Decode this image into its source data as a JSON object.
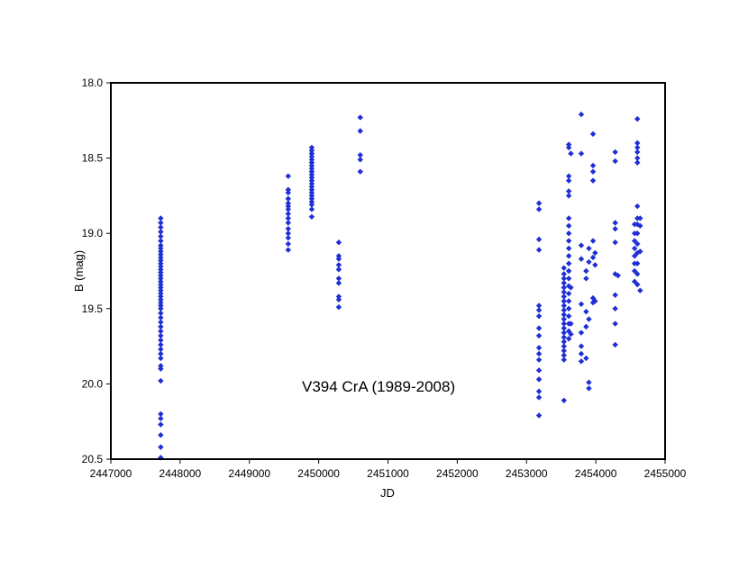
{
  "chart_data": {
    "type": "scatter",
    "title": "",
    "annotation": "V394 CrA (1989-2008)",
    "xlabel": "JD",
    "ylabel": "B (mag)",
    "xlim": [
      2447000,
      2455000
    ],
    "ylim": [
      18.0,
      20.5
    ],
    "y_inverted": true,
    "x_ticks": [
      "2447000",
      "2448000",
      "2449000",
      "2450000",
      "2451000",
      "2452000",
      "2453000",
      "2454000",
      "2455000"
    ],
    "y_ticks": [
      "18.0",
      "18.5",
      "19.0",
      "19.5",
      "20.0",
      "20.5"
    ],
    "grid": false,
    "legend": "none",
    "marker": "diamond",
    "color": "#1f2fd6",
    "series": [
      {
        "values": [
          [
            2447720,
            18.9
          ],
          [
            2447720,
            18.93
          ],
          [
            2447720,
            18.96
          ],
          [
            2447720,
            18.99
          ],
          [
            2447720,
            19.02
          ],
          [
            2447720,
            19.05
          ],
          [
            2447720,
            19.08
          ],
          [
            2447720,
            19.1
          ],
          [
            2447720,
            19.12
          ],
          [
            2447720,
            19.14
          ],
          [
            2447720,
            19.16
          ],
          [
            2447720,
            19.18
          ],
          [
            2447720,
            19.2
          ],
          [
            2447720,
            19.22
          ],
          [
            2447720,
            19.24
          ],
          [
            2447720,
            19.26
          ],
          [
            2447720,
            19.28
          ],
          [
            2447720,
            19.3
          ],
          [
            2447720,
            19.32
          ],
          [
            2447720,
            19.34
          ],
          [
            2447720,
            19.36
          ],
          [
            2447720,
            19.38
          ],
          [
            2447720,
            19.4
          ],
          [
            2447720,
            19.42
          ],
          [
            2447720,
            19.44
          ],
          [
            2447720,
            19.46
          ],
          [
            2447720,
            19.48
          ],
          [
            2447720,
            19.5
          ],
          [
            2447720,
            19.53
          ],
          [
            2447720,
            19.56
          ],
          [
            2447720,
            19.59
          ],
          [
            2447720,
            19.62
          ],
          [
            2447720,
            19.65
          ],
          [
            2447720,
            19.68
          ],
          [
            2447720,
            19.71
          ],
          [
            2447720,
            19.74
          ],
          [
            2447720,
            19.77
          ],
          [
            2447720,
            19.8
          ],
          [
            2447720,
            19.83
          ],
          [
            2447720,
            19.88
          ],
          [
            2447720,
            19.9
          ],
          [
            2447720,
            19.98
          ],
          [
            2447720,
            20.2
          ],
          [
            2447720,
            20.23
          ],
          [
            2447720,
            20.27
          ],
          [
            2447720,
            20.34
          ],
          [
            2447720,
            20.42
          ],
          [
            2447720,
            20.49
          ],
          [
            2449560,
            18.62
          ],
          [
            2449560,
            18.71
          ],
          [
            2449560,
            18.73
          ],
          [
            2449560,
            18.77
          ],
          [
            2449560,
            18.8
          ],
          [
            2449560,
            18.82
          ],
          [
            2449560,
            18.84
          ],
          [
            2449560,
            18.87
          ],
          [
            2449560,
            18.9
          ],
          [
            2449560,
            18.93
          ],
          [
            2449560,
            18.97
          ],
          [
            2449560,
            19.0
          ],
          [
            2449560,
            19.03
          ],
          [
            2449560,
            19.07
          ],
          [
            2449560,
            19.11
          ],
          [
            2449900,
            18.43
          ],
          [
            2449900,
            18.45
          ],
          [
            2449900,
            18.47
          ],
          [
            2449900,
            18.49
          ],
          [
            2449900,
            18.51
          ],
          [
            2449900,
            18.53
          ],
          [
            2449900,
            18.55
          ],
          [
            2449900,
            18.57
          ],
          [
            2449900,
            18.59
          ],
          [
            2449900,
            18.61
          ],
          [
            2449900,
            18.63
          ],
          [
            2449900,
            18.65
          ],
          [
            2449900,
            18.67
          ],
          [
            2449900,
            18.69
          ],
          [
            2449900,
            18.71
          ],
          [
            2449900,
            18.73
          ],
          [
            2449900,
            18.75
          ],
          [
            2449900,
            18.77
          ],
          [
            2449900,
            18.79
          ],
          [
            2449900,
            18.81
          ],
          [
            2449900,
            18.84
          ],
          [
            2449900,
            18.89
          ],
          [
            2450290,
            19.06
          ],
          [
            2450290,
            19.15
          ],
          [
            2450290,
            19.17
          ],
          [
            2450290,
            19.21
          ],
          [
            2450290,
            19.24
          ],
          [
            2450290,
            19.3
          ],
          [
            2450290,
            19.33
          ],
          [
            2450290,
            19.42
          ],
          [
            2450290,
            19.44
          ],
          [
            2450290,
            19.49
          ],
          [
            2450600,
            18.23
          ],
          [
            2450600,
            18.32
          ],
          [
            2450600,
            18.48
          ],
          [
            2450600,
            18.51
          ],
          [
            2450600,
            18.59
          ],
          [
            2453180,
            18.8
          ],
          [
            2453180,
            18.84
          ],
          [
            2453180,
            19.04
          ],
          [
            2453180,
            19.11
          ],
          [
            2453180,
            19.48
          ],
          [
            2453180,
            19.51
          ],
          [
            2453180,
            19.55
          ],
          [
            2453180,
            19.63
          ],
          [
            2453180,
            19.68
          ],
          [
            2453180,
            19.76
          ],
          [
            2453180,
            19.8
          ],
          [
            2453180,
            19.84
          ],
          [
            2453180,
            19.91
          ],
          [
            2453180,
            19.97
          ],
          [
            2453180,
            20.05
          ],
          [
            2453180,
            20.09
          ],
          [
            2453180,
            20.21
          ],
          [
            2453540,
            19.23
          ],
          [
            2453540,
            19.27
          ],
          [
            2453540,
            19.3
          ],
          [
            2453540,
            19.33
          ],
          [
            2453540,
            19.36
          ],
          [
            2453540,
            19.39
          ],
          [
            2453540,
            19.42
          ],
          [
            2453540,
            19.45
          ],
          [
            2453540,
            19.48
          ],
          [
            2453540,
            19.51
          ],
          [
            2453540,
            19.54
          ],
          [
            2453540,
            19.57
          ],
          [
            2453540,
            19.6
          ],
          [
            2453540,
            19.63
          ],
          [
            2453540,
            19.66
          ],
          [
            2453540,
            19.69
          ],
          [
            2453540,
            19.72
          ],
          [
            2453540,
            19.75
          ],
          [
            2453540,
            19.78
          ],
          [
            2453540,
            19.81
          ],
          [
            2453540,
            19.84
          ],
          [
            2453540,
            20.11
          ],
          [
            2453610,
            18.41
          ],
          [
            2453610,
            18.43
          ],
          [
            2453610,
            18.62
          ],
          [
            2453610,
            18.65
          ],
          [
            2453610,
            18.72
          ],
          [
            2453610,
            18.75
          ],
          [
            2453610,
            18.9
          ],
          [
            2453610,
            18.95
          ],
          [
            2453610,
            19.0
          ],
          [
            2453610,
            19.05
          ],
          [
            2453610,
            19.1
          ],
          [
            2453610,
            19.15
          ],
          [
            2453610,
            19.2
          ],
          [
            2453610,
            19.25
          ],
          [
            2453610,
            19.3
          ],
          [
            2453610,
            19.35
          ],
          [
            2453610,
            19.4
          ],
          [
            2453610,
            19.45
          ],
          [
            2453610,
            19.5
          ],
          [
            2453610,
            19.55
          ],
          [
            2453610,
            19.6
          ],
          [
            2453610,
            19.65
          ],
          [
            2453610,
            19.7
          ],
          [
            2453640,
            18.47
          ],
          [
            2453640,
            19.36
          ],
          [
            2453640,
            19.6
          ],
          [
            2453640,
            19.67
          ],
          [
            2453790,
            18.21
          ],
          [
            2453790,
            18.47
          ],
          [
            2453790,
            19.08
          ],
          [
            2453790,
            19.17
          ],
          [
            2453790,
            19.47
          ],
          [
            2453790,
            19.66
          ],
          [
            2453790,
            19.75
          ],
          [
            2453790,
            19.8
          ],
          [
            2453790,
            19.85
          ],
          [
            2453860,
            19.25
          ],
          [
            2453860,
            19.3
          ],
          [
            2453860,
            19.52
          ],
          [
            2453860,
            19.62
          ],
          [
            2453860,
            19.83
          ],
          [
            2453900,
            19.1
          ],
          [
            2453900,
            19.19
          ],
          [
            2453900,
            19.57
          ],
          [
            2453900,
            19.99
          ],
          [
            2453900,
            20.03
          ],
          [
            2453960,
            18.34
          ],
          [
            2453960,
            18.55
          ],
          [
            2453960,
            18.59
          ],
          [
            2453960,
            18.65
          ],
          [
            2453960,
            19.05
          ],
          [
            2453960,
            19.16
          ],
          [
            2453960,
            19.43
          ],
          [
            2453960,
            19.46
          ],
          [
            2453990,
            19.13
          ],
          [
            2453990,
            19.21
          ],
          [
            2453990,
            19.45
          ],
          [
            2454280,
            18.46
          ],
          [
            2454280,
            18.52
          ],
          [
            2454280,
            18.93
          ],
          [
            2454280,
            18.97
          ],
          [
            2454280,
            19.06
          ],
          [
            2454280,
            19.27
          ],
          [
            2454280,
            19.41
          ],
          [
            2454280,
            19.5
          ],
          [
            2454280,
            19.6
          ],
          [
            2454280,
            19.74
          ],
          [
            2454320,
            19.28
          ],
          [
            2454560,
            18.94
          ],
          [
            2454560,
            19.0
          ],
          [
            2454560,
            19.05
          ],
          [
            2454560,
            19.1
          ],
          [
            2454560,
            19.15
          ],
          [
            2454560,
            19.2
          ],
          [
            2454560,
            19.25
          ],
          [
            2454560,
            19.32
          ],
          [
            2454600,
            18.24
          ],
          [
            2454600,
            18.4
          ],
          [
            2454600,
            18.43
          ],
          [
            2454600,
            18.46
          ],
          [
            2454600,
            18.5
          ],
          [
            2454600,
            18.53
          ],
          [
            2454600,
            18.82
          ],
          [
            2454600,
            18.9
          ],
          [
            2454600,
            18.94
          ],
          [
            2454600,
            19.0
          ],
          [
            2454600,
            19.07
          ],
          [
            2454600,
            19.13
          ],
          [
            2454600,
            19.2
          ],
          [
            2454600,
            19.27
          ],
          [
            2454600,
            19.34
          ],
          [
            2454640,
            18.9
          ],
          [
            2454640,
            18.95
          ],
          [
            2454640,
            19.12
          ],
          [
            2454640,
            19.38
          ]
        ]
      }
    ]
  }
}
